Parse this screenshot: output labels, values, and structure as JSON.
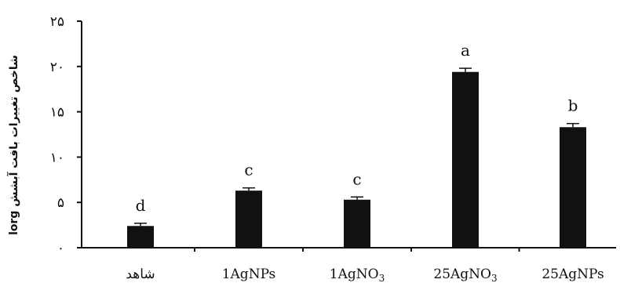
{
  "chart_data": {
    "type": "bar",
    "ylabel": "lorg شاخص تغییرات بافت آبشش",
    "ylim": [
      0,
      25
    ],
    "yticks": [
      0,
      5,
      10,
      15,
      20,
      25
    ],
    "ytick_labels": [
      "٠",
      "۵",
      "١٠",
      "١۵",
      "٢٠",
      "٢۵"
    ],
    "categories": [
      "شاهد",
      "1AgNPs",
      "1AgNO3",
      "25AgNO3",
      "25AgNPs"
    ],
    "categories_sub": [
      "",
      "",
      "3",
      "3",
      ""
    ],
    "categories_main": [
      "شاهد",
      "1AgNPs",
      "1AgNO",
      "25AgNO",
      "25AgNPs"
    ],
    "values": [
      2.4,
      6.3,
      5.3,
      19.4,
      13.3
    ],
    "errors": [
      0.3,
      0.3,
      0.3,
      0.4,
      0.4
    ],
    "significance": [
      "d",
      "c",
      "c",
      "a",
      "b"
    ],
    "bar_color": "#111111",
    "grid": false,
    "legend": "none"
  }
}
